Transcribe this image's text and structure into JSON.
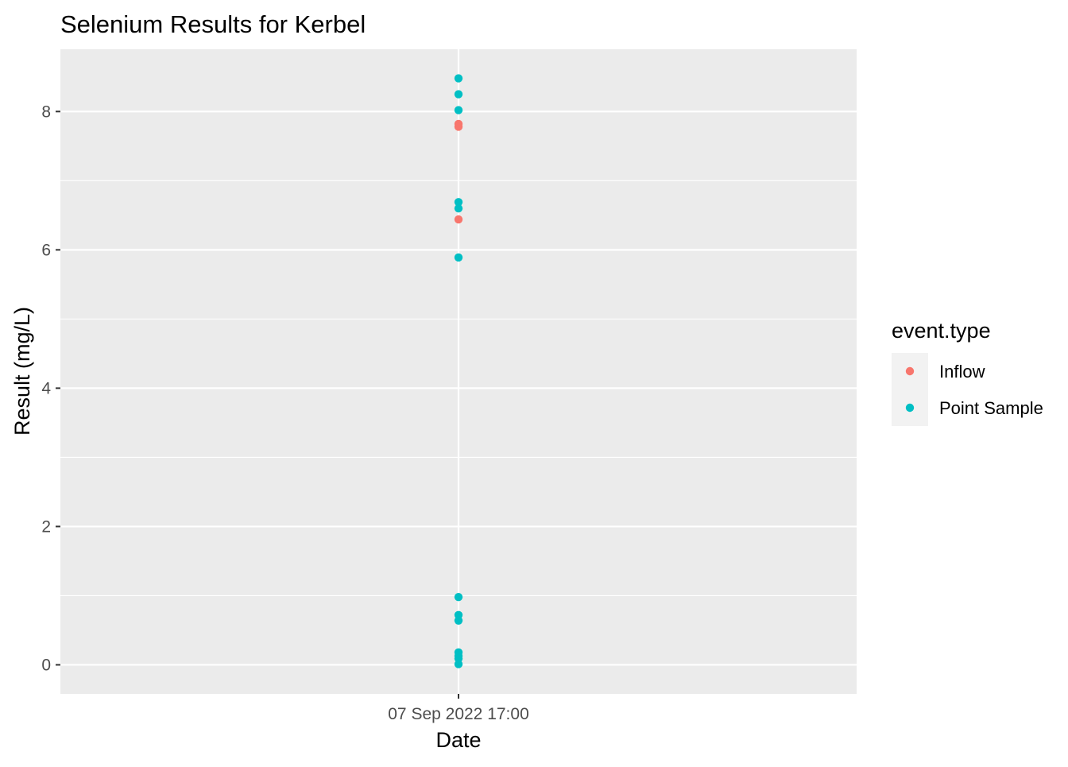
{
  "chart_data": {
    "type": "scatter",
    "title": "Selenium Results for Kerbel",
    "xlabel": "Date",
    "ylabel": "Result (mg/L)",
    "x_tick_labels": [
      "07 Sep 2022 17:00"
    ],
    "y_ticks": [
      0,
      2,
      4,
      6,
      8
    ],
    "y_tick_labels": [
      "0",
      "2",
      "4",
      "6",
      "8"
    ],
    "ylim": [
      -0.42,
      8.9
    ],
    "grid": true,
    "legend": {
      "title": "event.type",
      "position": "right"
    },
    "series": [
      {
        "name": "Inflow",
        "color": "#f8766d",
        "points": [
          {
            "x": "07 Sep 2022 17:00",
            "y": 7.82
          },
          {
            "x": "07 Sep 2022 17:00",
            "y": 7.78
          },
          {
            "x": "07 Sep 2022 17:00",
            "y": 6.44
          }
        ]
      },
      {
        "name": "Point Sample",
        "color": "#00bfc4",
        "points": [
          {
            "x": "07 Sep 2022 17:00",
            "y": 8.48
          },
          {
            "x": "07 Sep 2022 17:00",
            "y": 8.25
          },
          {
            "x": "07 Sep 2022 17:00",
            "y": 8.02
          },
          {
            "x": "07 Sep 2022 17:00",
            "y": 6.69
          },
          {
            "x": "07 Sep 2022 17:00",
            "y": 6.6
          },
          {
            "x": "07 Sep 2022 17:00",
            "y": 5.89
          },
          {
            "x": "07 Sep 2022 17:00",
            "y": 0.98
          },
          {
            "x": "07 Sep 2022 17:00",
            "y": 0.72
          },
          {
            "x": "07 Sep 2022 17:00",
            "y": 0.64
          },
          {
            "x": "07 Sep 2022 17:00",
            "y": 0.18
          },
          {
            "x": "07 Sep 2022 17:00",
            "y": 0.13
          },
          {
            "x": "07 Sep 2022 17:00",
            "y": 0.09
          },
          {
            "x": "07 Sep 2022 17:00",
            "y": 0.01
          }
        ]
      }
    ]
  },
  "colors": {
    "panel_background": "#ebebeb",
    "grid_major": "#ffffff",
    "legend_key_background": "#f2f2f2"
  }
}
